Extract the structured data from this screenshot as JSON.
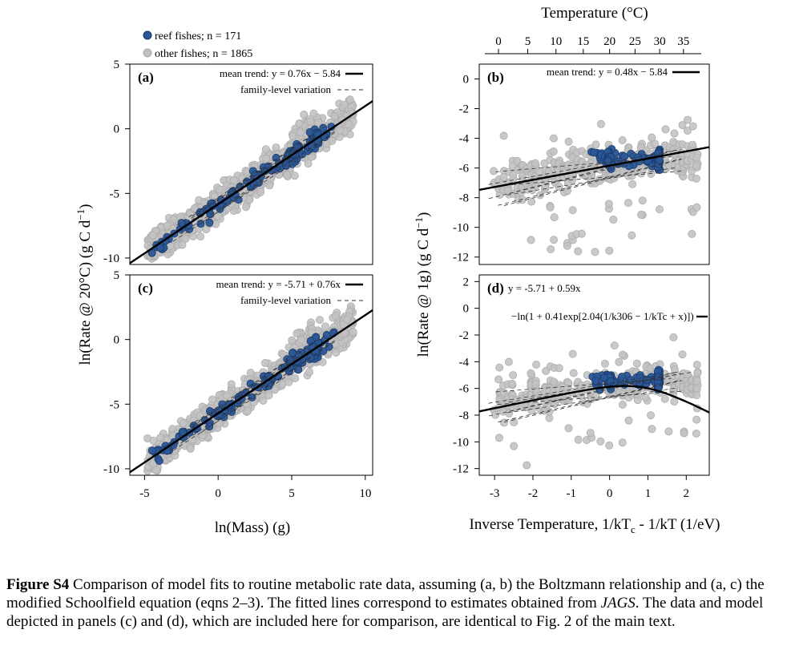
{
  "figure": {
    "legend": [
      {
        "label": "reef fishes; n = 171",
        "color": "#2b5797"
      },
      {
        "label": "other fishes; n = 1865",
        "color": "#c0c0c0"
      }
    ],
    "ylabel_left": "ln(Rate @ 20°C) (g C d",
    "ylabel_left_sup": "−1",
    "ylabel_left_end": ")",
    "ylabel_right": "ln(Rate @ 1g) (g C d",
    "ylabel_right_sup": "−1",
    "ylabel_right_end": ")",
    "xlabel_left": "ln(Mass) (g)",
    "xlabel_right": "Inverse Temperature, 1/kT",
    "xlabel_right_sub": "c",
    "xlabel_right_mid": " - 1/kT (1/eV)",
    "top_axis_title": "Temperature (°C)"
  },
  "caption": {
    "label": "Figure S4",
    "text1": " Comparison of model fits to routine metabolic rate data, assuming (a, b) the Boltzmann relationship and (a, c) the modified Schoolfield equation (eqns 2–3). The fitted lines correspond to estimates obtained from ",
    "italic": "JAGS",
    "text2": ". The data and model depicted in panels (c) and (d), which are included here for comparison, are identical to Fig. 2 of the main text."
  },
  "chart_data": [
    {
      "panel": "a",
      "label": "(a)",
      "type": "scatter",
      "xlim": [
        -6,
        10.5
      ],
      "ylim": [
        -10.5,
        5
      ],
      "xticks": [
        -5,
        0,
        5,
        10
      ],
      "yticks": [
        -10,
        -5,
        0,
        5
      ],
      "legend": [
        {
          "text": "mean trend:  y = 0.76x − 5.84",
          "style": "solid"
        },
        {
          "text": "family-level variation",
          "style": "dashed"
        }
      ],
      "mean_trend": {
        "slope": 0.76,
        "intercept": -5.84
      },
      "series": [
        {
          "name": "other fishes",
          "x_range": [
            -4.8,
            9.2
          ],
          "slope": 0.76,
          "intercept": -5.84,
          "spread": 1.0
        },
        {
          "name": "reef fishes",
          "x_range": [
            -4.5,
            8.0
          ],
          "slope": 0.76,
          "intercept": -5.84,
          "spread": 0.7
        }
      ]
    },
    {
      "panel": "b",
      "label": "(b)",
      "type": "scatter",
      "xlim": [
        -3.4,
        2.6
      ],
      "ylim": [
        -12.5,
        1
      ],
      "xticks": [
        -3,
        -2,
        -1,
        0,
        1,
        2
      ],
      "yticks": [
        -12,
        -10,
        -8,
        -6,
        -4,
        -2,
        0
      ],
      "top_ticks": [
        0,
        5,
        10,
        15,
        20,
        25,
        30,
        35
      ],
      "legend": [
        {
          "text": "mean trend:  y = 0.48x − 5.84",
          "style": "solid"
        }
      ],
      "mean_trend": {
        "slope": 0.48,
        "intercept": -5.84
      }
    },
    {
      "panel": "c",
      "label": "(c)",
      "type": "scatter",
      "xlim": [
        -6,
        10.5
      ],
      "ylim": [
        -10.5,
        5
      ],
      "xticks": [
        -5,
        0,
        5,
        10
      ],
      "yticks": [
        -10,
        -5,
        0,
        5
      ],
      "legend": [
        {
          "text": "mean trend:  y = -5.71 + 0.76x",
          "style": "solid"
        },
        {
          "text": "family-level variation",
          "style": "dashed"
        }
      ],
      "mean_trend": {
        "slope": 0.76,
        "intercept": -5.71
      }
    },
    {
      "panel": "d",
      "label": "(d)",
      "type": "scatter",
      "xlim": [
        -3.4,
        2.6
      ],
      "ylim": [
        -12.5,
        2.5
      ],
      "xticks": [
        -3,
        -2,
        -1,
        0,
        1,
        2
      ],
      "yticks": [
        -12,
        -10,
        -8,
        -6,
        -4,
        -2,
        0,
        2
      ],
      "legend": [
        {
          "text": "y = -5.71 + 0.59x",
          "style": "solid"
        },
        {
          "text": "−ln(1 + 0.41exp[2.04(1/k306 − 1/kTc + x)])",
          "style": "solid"
        }
      ],
      "schoolfield": {
        "a": -5.71,
        "b": 0.59,
        "c": 0.41,
        "Eh": 2.04,
        "Th_term": 0.4
      }
    }
  ]
}
